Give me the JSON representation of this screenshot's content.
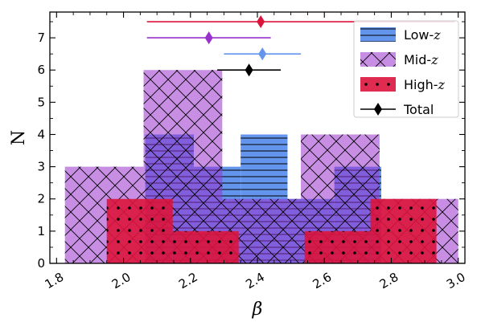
{
  "chart_data": {
    "type": "histogram",
    "title": "",
    "xlabel": "β",
    "ylabel": "N",
    "xlim": [
      1.78,
      3.02
    ],
    "ylim": [
      0,
      7.8
    ],
    "xticks": [
      1.8,
      2.0,
      2.2,
      2.4,
      2.6,
      2.8,
      3.0
    ],
    "xtick_labels": [
      "1.8",
      "2.0",
      "2.2",
      "2.4",
      "2.6",
      "2.8",
      "3.0"
    ],
    "yticks": [
      0,
      1,
      2,
      3,
      4,
      5,
      6,
      7
    ],
    "ytick_labels": [
      "0",
      "1",
      "2",
      "3",
      "4",
      "5",
      "6",
      "7"
    ],
    "legend_position": "top-right",
    "series": [
      {
        "name": "Low-z",
        "legend_label": "Low-",
        "legend_italic": "z",
        "color": "#6495ED",
        "hatch": "horizontal-lines",
        "bins": [
          {
            "x0": 2.065,
            "x1": 2.21,
            "count": 4
          },
          {
            "x0": 2.21,
            "x1": 2.35,
            "count": 3
          },
          {
            "x0": 2.35,
            "x1": 2.49,
            "count": 4
          },
          {
            "x0": 2.49,
            "x1": 2.63,
            "count": 2
          },
          {
            "x0": 2.63,
            "x1": 2.77,
            "count": 3
          }
        ]
      },
      {
        "name": "Mid-z",
        "legend_label": "Mid-",
        "legend_italic": "z",
        "color": "#9932CC",
        "fill_opacity": 0.55,
        "hatch": "cross",
        "bins": [
          {
            "x0": 1.825,
            "x1": 2.06,
            "count": 3
          },
          {
            "x0": 2.06,
            "x1": 2.295,
            "count": 6
          },
          {
            "x0": 2.295,
            "x1": 2.53,
            "count": 2
          },
          {
            "x0": 2.53,
            "x1": 2.765,
            "count": 4
          },
          {
            "x0": 2.765,
            "x1": 3.0,
            "count": 2
          }
        ]
      },
      {
        "name": "High-z",
        "legend_label": "High-",
        "legend_italic": "z",
        "color": "#DC143C",
        "fill_opacity": 0.9,
        "hatch": "dots",
        "bins": [
          {
            "x0": 1.95,
            "x1": 2.147,
            "count": 2
          },
          {
            "x0": 2.147,
            "x1": 2.344,
            "count": 1
          },
          {
            "x0": 2.344,
            "x1": 2.541,
            "count": 0
          },
          {
            "x0": 2.541,
            "x1": 2.738,
            "count": 1
          },
          {
            "x0": 2.738,
            "x1": 2.935,
            "count": 2
          }
        ]
      }
    ],
    "errorbars": [
      {
        "name": "High-z",
        "color": "#DC143C",
        "x": 2.41,
        "xerr_low": 0.34,
        "xerr_high": 0.58,
        "y": 7.5
      },
      {
        "name": "Mid-z",
        "color": "#9932CC",
        "x": 2.255,
        "xerr_low": 0.185,
        "xerr_high": 0.185,
        "y": 7.0
      },
      {
        "name": "Low-z",
        "color": "#6495ED",
        "x": 2.415,
        "xerr_low": 0.115,
        "xerr_high": 0.115,
        "y": 6.5
      },
      {
        "name": "Total",
        "color": "#000000",
        "x": 2.375,
        "xerr_low": 0.095,
        "xerr_high": 0.095,
        "y": 6.0
      }
    ],
    "legend_total_label": "Total"
  }
}
